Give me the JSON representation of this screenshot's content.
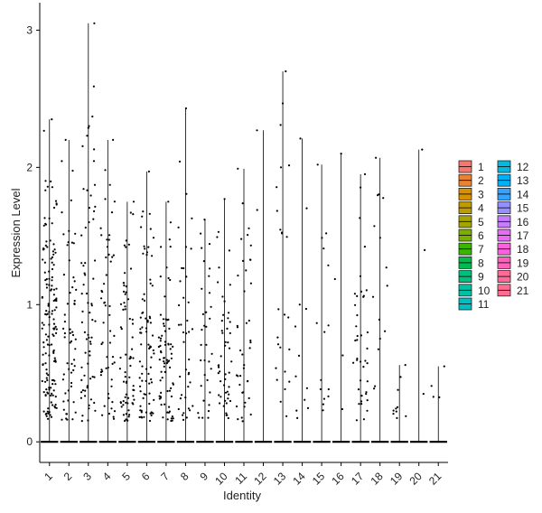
{
  "chart_data": {
    "type": "violin",
    "xlabel": "Identity",
    "ylabel": "Expression Level",
    "categories": [
      "1",
      "2",
      "3",
      "4",
      "5",
      "6",
      "7",
      "8",
      "9",
      "10",
      "11",
      "12",
      "13",
      "14",
      "15",
      "16",
      "17",
      "18",
      "19",
      "20",
      "21"
    ],
    "ylim": [
      -0.15,
      3.2
    ],
    "yticks": [
      0,
      1,
      2,
      3
    ],
    "grid": false,
    "legend_position": "right",
    "legend_columns": 2,
    "series": [
      {
        "name": "1",
        "color": "#F8766D",
        "max": 2.35
      },
      {
        "name": "2",
        "color": "#EA8331",
        "max": 2.2
      },
      {
        "name": "3",
        "color": "#D89000",
        "max": 3.05
      },
      {
        "name": "4",
        "color": "#C09B00",
        "max": 2.2
      },
      {
        "name": "5",
        "color": "#A3A500",
        "max": 1.75
      },
      {
        "name": "6",
        "color": "#7CAE00",
        "max": 1.97
      },
      {
        "name": "7",
        "color": "#39B600",
        "max": 1.75
      },
      {
        "name": "8",
        "color": "#00BB4E",
        "max": 2.43
      },
      {
        "name": "9",
        "color": "#00BF7D",
        "max": 1.62
      },
      {
        "name": "10",
        "color": "#00C1A3",
        "max": 1.77
      },
      {
        "name": "11",
        "color": "#00BFC4",
        "max": 1.99
      },
      {
        "name": "12",
        "color": "#00BAE0",
        "max": 2.27
      },
      {
        "name": "13",
        "color": "#00B0F6",
        "max": 2.7
      },
      {
        "name": "14",
        "color": "#35A2FF",
        "max": 2.21
      },
      {
        "name": "15",
        "color": "#9590FF",
        "max": 2.02
      },
      {
        "name": "16",
        "color": "#C77CFF",
        "max": 2.1
      },
      {
        "name": "17",
        "color": "#E76BF3",
        "max": 1.95
      },
      {
        "name": "18",
        "color": "#FA62DB",
        "max": 2.07
      },
      {
        "name": "19",
        "color": "#FF62BC",
        "max": 0.56
      },
      {
        "name": "20",
        "color": "#FF6A98",
        "max": 2.13
      },
      {
        "name": "21",
        "color": "#FF6C91",
        "max": 0.55
      }
    ],
    "point_counts": [
      150,
      60,
      70,
      55,
      70,
      80,
      75,
      40,
      35,
      50,
      40,
      2,
      25,
      12,
      15,
      4,
      40,
      15,
      10,
      3,
      4
    ]
  }
}
